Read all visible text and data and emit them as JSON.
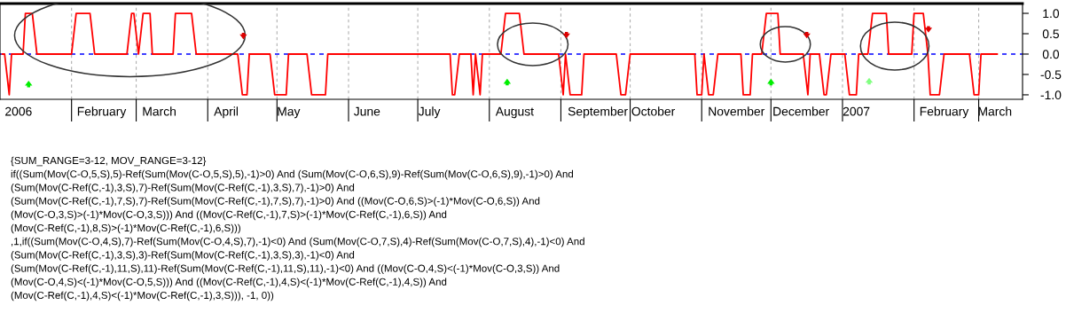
{
  "chart_data": {
    "type": "line",
    "x": [
      "2006-01-02",
      "2006-01-03",
      "2006-01-05",
      "2006-01-06",
      "2006-01-11",
      "2006-01-12",
      "2006-01-15",
      "2006-01-17",
      "2006-02-01",
      "2006-02-03",
      "2006-02-09",
      "2006-02-11",
      "2006-02-25",
      "2006-02-27",
      "2006-02-28",
      "2006-03-02",
      "2006-03-04",
      "2006-03-07",
      "2006-03-08",
      "2006-03-17",
      "2006-03-18",
      "2006-03-25",
      "2006-03-27",
      "2006-04-14",
      "2006-04-16",
      "2006-04-18",
      "2006-04-19",
      "2006-04-28",
      "2006-04-30",
      "2006-05-05",
      "2006-05-06",
      "2006-05-14",
      "2006-05-16",
      "2006-05-22",
      "2006-05-23",
      "2006-07-15",
      "2006-07-16",
      "2006-07-17",
      "2006-07-19",
      "2006-07-24",
      "2006-07-25",
      "2006-07-26",
      "2006-07-28",
      "2006-07-29",
      "2006-08-06",
      "2006-08-08",
      "2006-08-14",
      "2006-08-16",
      "2006-08-31",
      "2006-09-02",
      "2006-09-03",
      "2006-09-05",
      "2006-09-10",
      "2006-09-11",
      "2006-09-25",
      "2006-09-27",
      "2006-09-29",
      "2006-10-01",
      "2006-10-29",
      "2006-10-30",
      "2006-11-01",
      "2006-11-02",
      "2006-11-04",
      "2006-11-06",
      "2006-11-08",
      "2006-11-18",
      "2006-11-19",
      "2006-11-22",
      "2006-11-23",
      "2006-11-27",
      "2006-11-29",
      "2006-12-04",
      "2006-12-05",
      "2006-12-15",
      "2006-12-17",
      "2006-12-18",
      "2006-12-22",
      "2006-12-24",
      "2006-12-25",
      "2006-12-27",
      "2007-01-02",
      "2007-01-04",
      "2007-01-07",
      "2007-01-08",
      "2007-01-12",
      "2007-01-14",
      "2007-01-20",
      "2007-01-21",
      "2007-01-31",
      "2007-02-01",
      "2007-02-05",
      "2007-02-07",
      "2007-02-08",
      "2007-02-12",
      "2007-02-14",
      "2007-02-25",
      "2007-02-27",
      "2007-03-01",
      "2007-03-02",
      "2007-03-09"
    ],
    "series": [
      {
        "color": "#ff0000",
        "values": [
          0,
          0,
          -1,
          0,
          0,
          1,
          1,
          0,
          0,
          1,
          1,
          0,
          0,
          1,
          1,
          0,
          1,
          1,
          0,
          0,
          1,
          1,
          0,
          0,
          -1,
          -1,
          0,
          0,
          -1,
          -1,
          0,
          0,
          -1,
          -1,
          0,
          0,
          -1,
          -1,
          0,
          0,
          -1,
          0,
          -1,
          0,
          0,
          1,
          1,
          0,
          0,
          -1,
          0,
          -1,
          -1,
          0,
          0,
          -1,
          -1,
          0,
          0,
          -1,
          -1,
          0,
          -1,
          -1,
          0,
          0,
          -1,
          -1,
          0,
          0,
          1,
          1,
          0,
          0,
          -1,
          0,
          0,
          -1,
          -1,
          0,
          0,
          -1,
          -1,
          0,
          0,
          1,
          1,
          0,
          0,
          1,
          1,
          0,
          -1,
          -1,
          0,
          0,
          -1,
          -1,
          0,
          0
        ]
      }
    ],
    "xlim": [
      "2006-01-01",
      "2007-03-20"
    ],
    "xticks": [
      {
        "value": "2006-01-09",
        "label": "2006"
      },
      {
        "value": "2006-02-01",
        "label": null
      },
      {
        "value": "2006-02-14",
        "label": "February"
      },
      {
        "value": "2006-03-01",
        "label": null
      },
      {
        "value": "2006-03-11",
        "label": "March"
      },
      {
        "value": "2006-04-01",
        "label": null
      },
      {
        "value": "2006-04-09",
        "label": "April"
      },
      {
        "value": "2006-05-01",
        "label": null
      },
      {
        "value": "2006-05-06",
        "label": "May"
      },
      {
        "value": "2006-06-01",
        "label": null
      },
      {
        "value": "2006-06-09",
        "label": "June"
      },
      {
        "value": "2006-07-01",
        "label": null
      },
      {
        "value": "2006-07-06",
        "label": "July"
      },
      {
        "value": "2006-08-01",
        "label": null
      },
      {
        "value": "2006-08-12",
        "label": "August"
      },
      {
        "value": "2006-09-01",
        "label": null
      },
      {
        "value": "2006-09-17",
        "label": "September"
      },
      {
        "value": "2006-10-01",
        "label": null
      },
      {
        "value": "2006-10-11",
        "label": "October"
      },
      {
        "value": "2006-11-01",
        "label": null
      },
      {
        "value": "2006-11-16",
        "label": "November"
      },
      {
        "value": "2006-12-01",
        "label": null
      },
      {
        "value": "2006-12-14",
        "label": "December"
      },
      {
        "value": "2007-01-01",
        "label": null
      },
      {
        "value": "2007-01-07",
        "label": "2007"
      },
      {
        "value": "2007-02-01",
        "label": null
      },
      {
        "value": "2007-02-14",
        "label": "February"
      },
      {
        "value": "2007-03-01",
        "label": null
      },
      {
        "value": "2007-03-08",
        "label": "March"
      }
    ],
    "ylim": [
      -1.11,
      1.24
    ],
    "yticks": [
      {
        "value": 1,
        "label": "1.0"
      },
      {
        "value": 0.5,
        "label": "0.5"
      },
      {
        "value": 0,
        "label": "0.0"
      },
      {
        "value": -0.5,
        "label": "-0.5"
      },
      {
        "value": -1,
        "label": "-1.0"
      }
    ],
    "grid": "x",
    "ref_lines": [
      {
        "axis": "y",
        "value": 0,
        "color": "#0000ff",
        "line_style": "dashed"
      }
    ],
    "annotations": [
      "{SUM_RANGE=3-12, MOV_RANGE=3-12}",
      "if((Sum(Mov(C-O,5,S),5)-Ref(Sum(Mov(C-O,5,S),5),-1)>0) And (Sum(Mov(C-O,6,S),9)-Ref(Sum(Mov(C-O,6,S),9),-1)>0) And",
      "(Sum(Mov(C-Ref(C,-1),3,S),7)-Ref(Sum(Mov(C-Ref(C,-1),3,S),7),-1)>0) And",
      "(Sum(Mov(C-Ref(C,-1),7,S),7)-Ref(Sum(Mov(C-Ref(C,-1),7,S),7),-1)>0) And ((Mov(C-O,6,S)>(-1)*Mov(C-O,6,S)) And",
      "(Mov(C-O,3,S)>(-1)*Mov(C-O,3,S))) And ((Mov(C-Ref(C,-1),7,S)>(-1)*Mov(C-Ref(C,-1),6,S)) And",
      "(Mov(C-Ref(C,-1),8,S)>(-1)*Mov(C-Ref(C,-1),6,S)))",
      ",1,if((Sum(Mov(C-O,4,S),7)-Ref(Sum(Mov(C-O,4,S),7),-1)<0) And (Sum(Mov(C-O,7,S),4)-Ref(Sum(Mov(C-O,7,S),4),-1)<0) And",
      "(Sum(Mov(C-Ref(C,-1),3,S),3)-Ref(Sum(Mov(C-Ref(C,-1),3,S),3),-1)<0) And",
      "(Sum(Mov(C-Ref(C,-1),11,S),11)-Ref(Sum(Mov(C-Ref(C,-1),11,S),11),-1)<0) And ((Mov(C-O,4,S)<(-1)*Mov(C-O,3,S)) And",
      "(Mov(C-O,4,S)<(-1)*Mov(C-O,5,S))) And ((Mov(C-Ref(C,-1),4,S)<(-1)*Mov(C-Ref(C,-1),4,S)) And",
      "(Mov(C-Ref(C,-1),4,S)<(-1)*Mov(C-Ref(C,-1),3,S))), -1, 0))"
    ]
  }
}
